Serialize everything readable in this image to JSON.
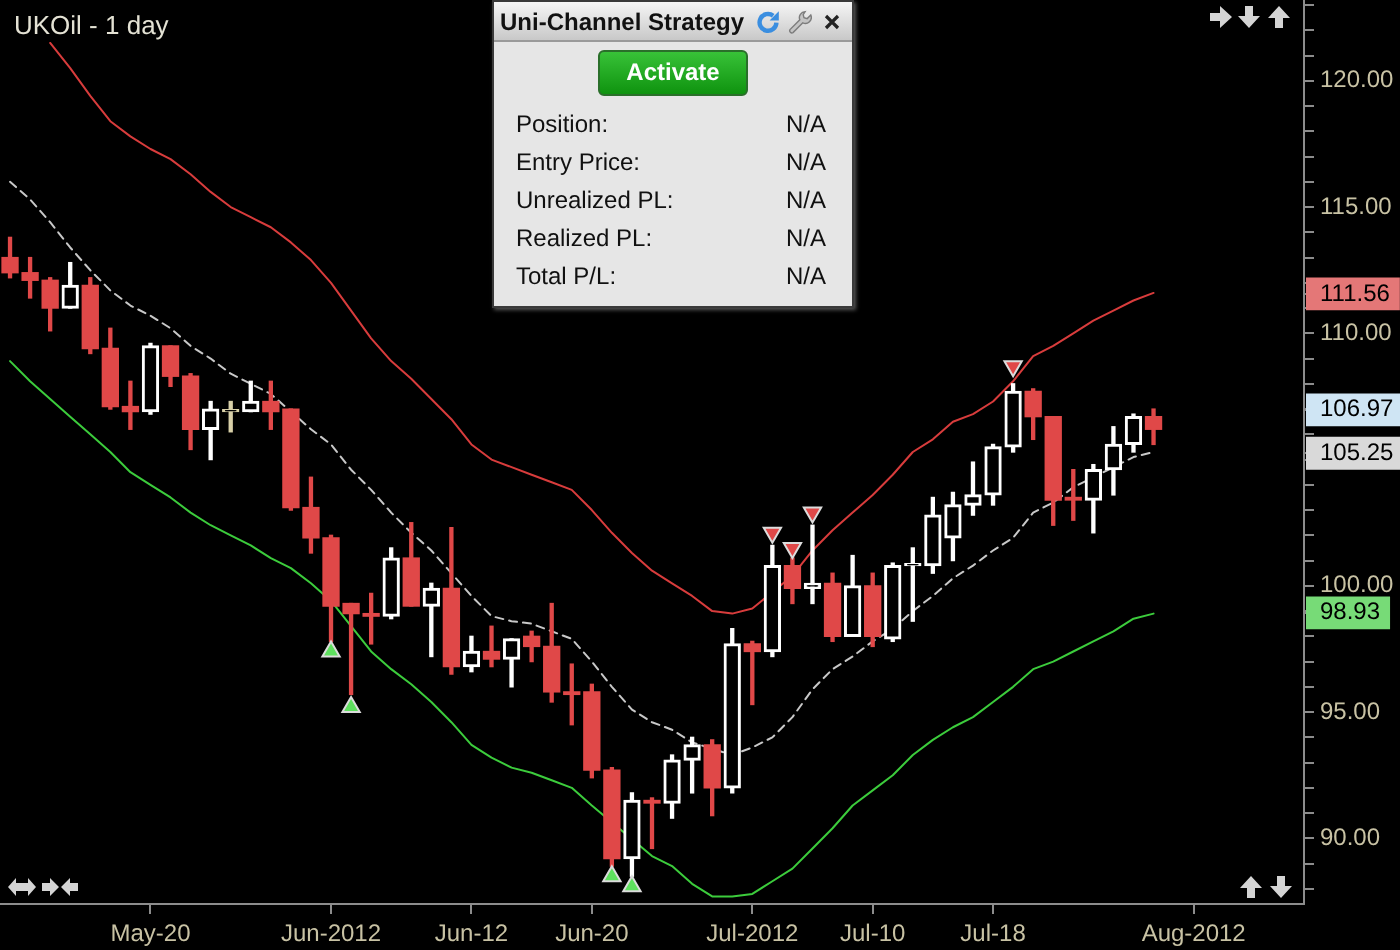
{
  "chart_data": [
    {
      "type": "candlestick",
      "title": "UKOil - 1 day",
      "categories": [
        null,
        null,
        null,
        null,
        null,
        null,
        null,
        "May-20",
        null,
        null,
        null,
        null,
        null,
        null,
        null,
        null,
        "Jun-2012",
        null,
        null,
        null,
        null,
        null,
        null,
        "Jun-12",
        null,
        null,
        null,
        null,
        null,
        "Jun-20",
        null,
        null,
        null,
        null,
        null,
        null,
        null,
        "Jul-2012",
        null,
        null,
        null,
        null,
        null,
        "Jul-10",
        null,
        null,
        null,
        null,
        null,
        "Jul-18",
        null,
        null,
        null,
        null,
        null,
        null,
        null,
        null,
        null,
        "Aug-2012",
        null,
        null,
        null,
        null,
        null
      ],
      "ohlc": [
        [
          113.0,
          113.8,
          112.2,
          112.4
        ],
        [
          112.4,
          113.0,
          111.4,
          112.1
        ],
        [
          112.1,
          112.2,
          110.1,
          111.0
        ],
        [
          111.0,
          112.8,
          111.0,
          111.9
        ],
        [
          111.9,
          112.2,
          109.2,
          109.4
        ],
        [
          109.4,
          110.2,
          107.0,
          107.1
        ],
        [
          107.1,
          108.1,
          106.2,
          106.9
        ],
        [
          106.9,
          109.6,
          106.8,
          109.5
        ],
        [
          109.5,
          109.5,
          107.9,
          108.3
        ],
        [
          108.3,
          108.4,
          105.4,
          106.2
        ],
        [
          106.2,
          107.3,
          105.0,
          107.0
        ],
        [
          106.9,
          107.3,
          106.1,
          106.9
        ],
        [
          106.9,
          108.1,
          106.9,
          107.3
        ],
        [
          107.3,
          108.1,
          106.2,
          106.9
        ],
        [
          107.0,
          107.0,
          103.0,
          103.1
        ],
        [
          103.1,
          104.3,
          101.3,
          101.9
        ],
        [
          101.9,
          102.0,
          97.8,
          99.2
        ],
        [
          99.3,
          99.3,
          95.7,
          98.9
        ],
        [
          98.9,
          99.7,
          97.7,
          98.8
        ],
        [
          98.8,
          101.5,
          98.7,
          101.1
        ],
        [
          101.1,
          102.5,
          99.2,
          99.2
        ],
        [
          99.2,
          100.1,
          97.2,
          99.9
        ],
        [
          99.9,
          102.3,
          96.5,
          96.8
        ],
        [
          96.8,
          98.0,
          96.6,
          97.4
        ],
        [
          97.4,
          98.4,
          96.8,
          97.1
        ],
        [
          97.1,
          97.9,
          96.0,
          97.9
        ],
        [
          98.0,
          98.2,
          97.0,
          97.6
        ],
        [
          97.6,
          99.3,
          95.4,
          95.8
        ],
        [
          95.8,
          96.9,
          94.5,
          95.7
        ],
        [
          95.8,
          96.1,
          92.4,
          92.7
        ],
        [
          92.7,
          92.8,
          88.9,
          89.2
        ],
        [
          89.2,
          91.8,
          88.5,
          91.5
        ],
        [
          91.5,
          91.6,
          89.6,
          91.4
        ],
        [
          91.4,
          93.3,
          90.8,
          93.1
        ],
        [
          93.1,
          94.0,
          91.8,
          93.7
        ],
        [
          93.7,
          93.9,
          90.9,
          92.0
        ],
        [
          92.0,
          98.3,
          91.8,
          97.7
        ],
        [
          97.7,
          97.8,
          95.3,
          97.4
        ],
        [
          97.4,
          101.6,
          97.2,
          100.8
        ],
        [
          100.8,
          101.1,
          99.3,
          99.9
        ],
        [
          99.9,
          102.4,
          99.3,
          100.1
        ],
        [
          100.1,
          100.5,
          97.8,
          98.0
        ],
        [
          98.0,
          101.2,
          98.0,
          100.0
        ],
        [
          100.0,
          100.5,
          97.6,
          98.0
        ],
        [
          97.9,
          100.9,
          97.8,
          100.8
        ],
        [
          100.8,
          101.5,
          98.6,
          100.8
        ],
        [
          100.8,
          103.5,
          100.5,
          102.8
        ],
        [
          101.9,
          103.7,
          101.0,
          103.2
        ],
        [
          103.2,
          104.9,
          102.8,
          103.6
        ],
        [
          103.6,
          105.6,
          103.2,
          105.5
        ],
        [
          105.5,
          108.0,
          105.3,
          107.7
        ],
        [
          107.7,
          107.8,
          105.8,
          106.7
        ],
        [
          106.7,
          106.7,
          102.4,
          103.4
        ],
        [
          103.5,
          104.6,
          102.6,
          103.4
        ],
        [
          103.4,
          104.8,
          102.1,
          104.6
        ],
        [
          104.6,
          106.3,
          103.6,
          105.6
        ],
        [
          105.6,
          106.8,
          105.3,
          106.7
        ],
        [
          106.7,
          107.0,
          105.6,
          106.2
        ],
        null,
        null,
        null,
        null,
        null,
        null,
        null
      ],
      "colors": [
        "#e04848",
        "#e04848",
        "#e04848",
        "#ffffff",
        "#e04848",
        "#e04848",
        "#e04848",
        "#ffffff",
        "#e04848",
        "#e04848",
        "#ffffff",
        "#d8d0a8",
        "#ffffff",
        "#e04848",
        "#e04848",
        "#e04848",
        "#e04848",
        "#e04848",
        "#e04848",
        "#ffffff",
        "#e04848",
        "#ffffff",
        "#e04848",
        "#ffffff",
        "#e04848",
        "#ffffff",
        "#e04848",
        "#e04848",
        "#e04848",
        "#e04848",
        "#e04848",
        "#ffffff",
        "#e04848",
        "#ffffff",
        "#ffffff",
        "#e04848",
        "#ffffff",
        "#e04848",
        "#ffffff",
        "#e04848",
        "#ffffff",
        "#e04848",
        "#ffffff",
        "#e04848",
        "#ffffff",
        "#ffffff",
        "#ffffff",
        "#ffffff",
        "#ffffff",
        "#ffffff",
        "#ffffff",
        "#e04848",
        "#e04848",
        "#e04848",
        "#ffffff",
        "#ffffff",
        "#ffffff",
        "#e04848",
        null,
        null,
        null,
        null,
        null,
        null,
        null
      ],
      "series": [
        {
          "type": "line",
          "color": "#d83c3c",
          "line_style": "solid",
          "marker": "none",
          "values": [
            null,
            null,
            121.5,
            120.5,
            119.4,
            118.4,
            117.8,
            117.3,
            116.9,
            116.3,
            115.6,
            115.0,
            114.6,
            114.2,
            113.6,
            112.9,
            112.0,
            110.9,
            109.8,
            108.9,
            108.2,
            107.4,
            106.6,
            105.6,
            105.0,
            104.7,
            104.4,
            104.1,
            103.8,
            103.0,
            102.1,
            101.3,
            100.6,
            100.1,
            99.6,
            99.0,
            98.9,
            99.1,
            null,
            100.4,
            101.4,
            102.2,
            102.9,
            103.6,
            104.4,
            105.3,
            105.8,
            106.5,
            106.8,
            107.3,
            108.1,
            109.1,
            109.5,
            110.0,
            110.5,
            110.9,
            111.3,
            111.6,
            null,
            null,
            null,
            null,
            null,
            null,
            null
          ]
        },
        {
          "type": "line",
          "color": "#c8c8c8",
          "line_style": "dashed",
          "marker": "none",
          "values": [
            116.0,
            115.3,
            114.4,
            113.4,
            112.5,
            111.7,
            111.1,
            110.7,
            110.2,
            109.5,
            109.0,
            108.4,
            108.0,
            107.6,
            106.9,
            106.2,
            105.6,
            104.6,
            103.8,
            102.9,
            102.1,
            101.4,
            100.5,
            99.6,
            98.8,
            98.6,
            98.5,
            98.2,
            97.9,
            97.0,
            96.0,
            95.1,
            94.6,
            94.3,
            93.8,
            null,
            93.3,
            93.6,
            94.0,
            94.8,
            95.9,
            96.7,
            97.2,
            97.8,
            98.3,
            99.0,
            99.6,
            100.3,
            100.8,
            101.4,
            101.9,
            102.9,
            103.3,
            103.9,
            104.3,
            104.7,
            105.1,
            105.3,
            null,
            null,
            null,
            null,
            null,
            null,
            null
          ]
        },
        {
          "type": "line",
          "color": "#3ccc3c",
          "line_style": "solid",
          "marker": "none",
          "values": [
            108.9,
            108.1,
            107.4,
            106.7,
            106.0,
            105.3,
            104.5,
            104.0,
            103.5,
            102.9,
            102.4,
            102.0,
            101.6,
            101.1,
            100.7,
            100.1,
            99.4,
            98.4,
            97.4,
            96.7,
            96.1,
            95.4,
            94.6,
            93.7,
            93.2,
            92.8,
            92.6,
            92.3,
            92.0,
            91.3,
            null,
            null,
            89.3,
            88.9,
            88.2,
            87.7,
            87.7,
            87.8,
            88.3,
            88.8,
            89.6,
            90.4,
            91.3,
            91.9,
            92.5,
            93.3,
            93.9,
            94.4,
            94.8,
            95.4,
            96.0,
            96.7,
            97.0,
            97.4,
            97.8,
            98.2,
            98.7,
            98.9,
            null,
            null,
            null,
            null,
            null,
            null,
            null
          ]
        },
        {
          "type": "scatter",
          "color": "#5ee05e",
          "marker": "triangle",
          "values": [
            null,
            null,
            null,
            null,
            null,
            null,
            null,
            null,
            null,
            null,
            null,
            null,
            null,
            null,
            null,
            null,
            97.4,
            95.2,
            null,
            null,
            null,
            null,
            null,
            null,
            null,
            null,
            null,
            null,
            null,
            null,
            88.5,
            88.1,
            null,
            null,
            null,
            null,
            null,
            null,
            null,
            null,
            null,
            null,
            null,
            null,
            null,
            null,
            null,
            null,
            null,
            null,
            null,
            null,
            null,
            null,
            null,
            null,
            null,
            null,
            null,
            null,
            null,
            null,
            null,
            null,
            null
          ]
        },
        {
          "type": "scatter",
          "color": "#e04848",
          "marker": "triangle",
          "values": [
            null,
            null,
            null,
            null,
            null,
            null,
            null,
            null,
            null,
            null,
            null,
            null,
            null,
            null,
            null,
            null,
            null,
            null,
            null,
            null,
            null,
            null,
            null,
            null,
            null,
            null,
            null,
            null,
            null,
            null,
            null,
            null,
            null,
            null,
            null,
            null,
            null,
            null,
            102.1,
            101.5,
            102.9,
            null,
            null,
            null,
            null,
            null,
            null,
            null,
            null,
            null,
            108.7,
            null,
            null,
            null,
            null,
            null,
            null,
            null,
            null,
            null,
            null,
            null,
            null,
            null,
            null
          ]
        }
      ],
      "ylim": [
        87.4,
        123.2
      ],
      "yticks": [
        {
          "value": 88,
          "label": null
        },
        {
          "value": 89,
          "label": null
        },
        {
          "value": 90,
          "label": "90.00"
        },
        {
          "value": 91,
          "label": null
        },
        {
          "value": 92,
          "label": null
        },
        {
          "value": 93,
          "label": null
        },
        {
          "value": 94,
          "label": null
        },
        {
          "value": 95,
          "label": "95.00"
        },
        {
          "value": 96,
          "label": null
        },
        {
          "value": 97,
          "label": null
        },
        {
          "value": 98,
          "label": null
        },
        98.93,
        {
          "value": 99,
          "label": null
        },
        {
          "value": 100,
          "label": "100.00"
        },
        {
          "value": 101,
          "label": null
        },
        {
          "value": 102,
          "label": null
        },
        {
          "value": 103,
          "label": null
        },
        {
          "value": 104,
          "label": null
        },
        {
          "value": 105,
          "label": null
        },
        105.25,
        {
          "value": 106,
          "label": null
        },
        106.97,
        {
          "value": 107,
          "label": null
        },
        {
          "value": 108,
          "label": null
        },
        {
          "value": 109,
          "label": null
        },
        {
          "value": 110,
          "label": "110.00"
        },
        {
          "value": 111,
          "label": null
        },
        111.56,
        {
          "value": 112,
          "label": null
        },
        {
          "value": 113,
          "label": null
        },
        {
          "value": 114,
          "label": null
        },
        {
          "value": 115,
          "label": "115.00"
        },
        {
          "value": 116,
          "label": null
        },
        {
          "value": 117,
          "label": null
        },
        {
          "value": 118,
          "label": null
        },
        {
          "value": 119,
          "label": null
        },
        {
          "value": 120,
          "label": "120.00"
        },
        {
          "value": 121,
          "label": null
        },
        {
          "value": 122,
          "label": null
        },
        {
          "value": 123,
          "label": null
        }
      ]
    },
    {
      "type": "other",
      "title": "Uni-Channel Strategy",
      "annotations": [
        "Activate",
        "Position:",
        "N/A",
        "Entry Price:",
        "N/A",
        "Unrealized PL:",
        "N/A",
        "Realized PL:",
        "N/A",
        "Total P/L:",
        "N/A"
      ]
    }
  ]
}
